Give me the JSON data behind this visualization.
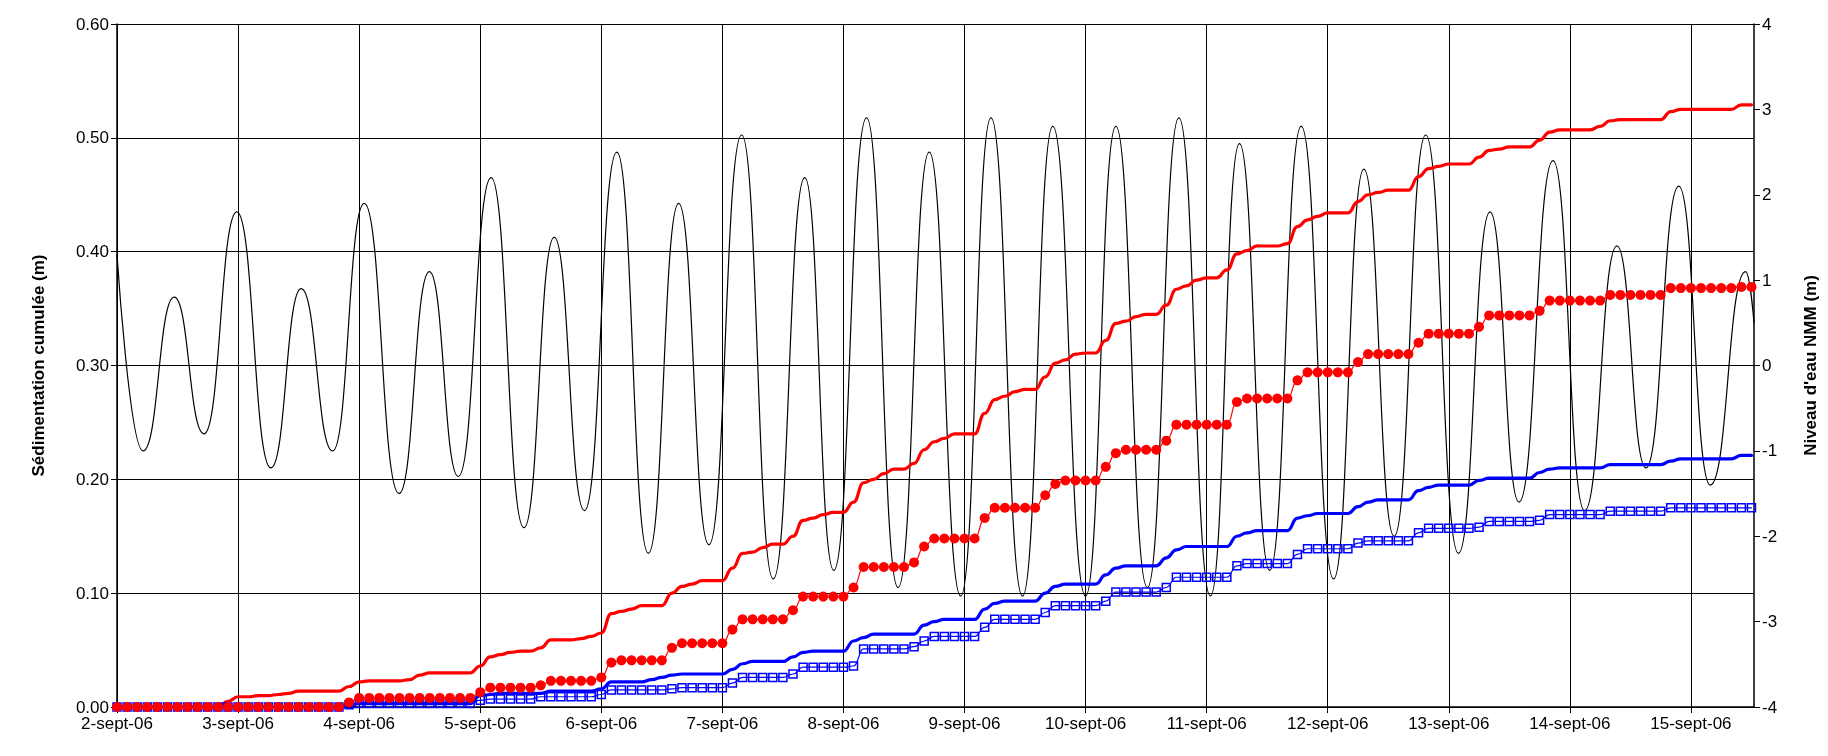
{
  "chart_data": {
    "type": "line",
    "ylabel": "Sédimentation cumulée (m)",
    "y2label": "Niveau d'eau NMM (m)",
    "grid": true,
    "xlim": [
      "--09-02T00:00",
      "--09-15T12:30"
    ],
    "xticks": [
      {
        "value": "--09-02",
        "label": "2-sept-06"
      },
      {
        "value": "--09-03",
        "label": "3-sept-06"
      },
      {
        "value": "--09-04",
        "label": "4-sept-06"
      },
      {
        "value": "--09-05",
        "label": "5-sept-06"
      },
      {
        "value": "--09-06",
        "label": "6-sept-06"
      },
      {
        "value": "--09-07",
        "label": "7-sept-06"
      },
      {
        "value": "--09-08",
        "label": "8-sept-06"
      },
      {
        "value": "--09-09",
        "label": "9-sept-06"
      },
      {
        "value": "--09-10",
        "label": "10-sept-06"
      },
      {
        "value": "--09-11",
        "label": "11-sept-06"
      },
      {
        "value": "--09-12",
        "label": "12-sept-06"
      },
      {
        "value": "--09-13",
        "label": "13-sept-06"
      },
      {
        "value": "--09-14",
        "label": "14-sept-06"
      },
      {
        "value": "--09-15",
        "label": "15-sept-06"
      }
    ],
    "ylim": [
      0,
      0.6
    ],
    "yticks": [
      {
        "value": 0,
        "label": "0.00"
      },
      {
        "value": 0.1,
        "label": "0.10"
      },
      {
        "value": 0.2,
        "label": "0.20"
      },
      {
        "value": 0.3,
        "label": "0.30"
      },
      {
        "value": 0.4,
        "label": "0.40"
      },
      {
        "value": 0.5,
        "label": "0.50"
      },
      {
        "value": 0.6,
        "label": "0.60"
      }
    ],
    "y2lim": [
      -4,
      4
    ],
    "y2ticks": [
      -4,
      -3,
      -2,
      -1,
      0,
      1,
      2,
      3,
      4
    ],
    "x": [
      "--09-02T00:00",
      "--09-02T02:00",
      "--09-02T04:00",
      "--09-02T06:00",
      "--09-02T08:00",
      "--09-02T10:00",
      "--09-02T12:00",
      "--09-02T14:00",
      "--09-02T16:00",
      "--09-02T18:00",
      "--09-02T20:00",
      "--09-02T22:00",
      "--09-03T00:00",
      "--09-03T02:00",
      "--09-03T04:00",
      "--09-03T06:00",
      "--09-03T08:00",
      "--09-03T10:00",
      "--09-03T12:00",
      "--09-03T14:00",
      "--09-03T16:00",
      "--09-03T18:00",
      "--09-03T20:00",
      "--09-03T22:00",
      "--09-04T00:00",
      "--09-04T02:00",
      "--09-04T04:00",
      "--09-04T06:00",
      "--09-04T08:00",
      "--09-04T10:00",
      "--09-04T12:00",
      "--09-04T14:00",
      "--09-04T16:00",
      "--09-04T18:00",
      "--09-04T20:00",
      "--09-04T22:00",
      "--09-05T00:00",
      "--09-05T02:00",
      "--09-05T04:00",
      "--09-05T06:00",
      "--09-05T08:00",
      "--09-05T10:00",
      "--09-05T12:00",
      "--09-05T14:00",
      "--09-05T16:00",
      "--09-05T18:00",
      "--09-05T20:00",
      "--09-05T22:00",
      "--09-06T00:00",
      "--09-06T02:00",
      "--09-06T04:00",
      "--09-06T06:00",
      "--09-06T08:00",
      "--09-06T10:00",
      "--09-06T12:00",
      "--09-06T14:00",
      "--09-06T16:00",
      "--09-06T18:00",
      "--09-06T20:00",
      "--09-06T22:00",
      "--09-07T00:00",
      "--09-07T02:00",
      "--09-07T04:00",
      "--09-07T06:00",
      "--09-07T08:00",
      "--09-07T10:00",
      "--09-07T12:00",
      "--09-07T14:00",
      "--09-07T16:00",
      "--09-07T18:00",
      "--09-07T20:00",
      "--09-07T22:00",
      "--09-08T00:00",
      "--09-08T02:00",
      "--09-08T04:00",
      "--09-08T06:00",
      "--09-08T08:00",
      "--09-08T10:00",
      "--09-08T12:00",
      "--09-08T14:00",
      "--09-08T16:00",
      "--09-08T18:00",
      "--09-08T20:00",
      "--09-08T22:00",
      "--09-09T00:00",
      "--09-09T02:00",
      "--09-09T04:00",
      "--09-09T06:00",
      "--09-09T08:00",
      "--09-09T10:00",
      "--09-09T12:00",
      "--09-09T14:00",
      "--09-09T16:00",
      "--09-09T18:00",
      "--09-09T20:00",
      "--09-09T22:00",
      "--09-10T00:00",
      "--09-10T02:00",
      "--09-10T04:00",
      "--09-10T06:00",
      "--09-10T08:00",
      "--09-10T10:00",
      "--09-10T12:00",
      "--09-10T14:00",
      "--09-10T16:00",
      "--09-10T18:00",
      "--09-10T20:00",
      "--09-10T22:00",
      "--09-11T00:00",
      "--09-11T02:00",
      "--09-11T04:00",
      "--09-11T06:00",
      "--09-11T08:00",
      "--09-11T10:00",
      "--09-11T12:00",
      "--09-11T14:00",
      "--09-11T16:00",
      "--09-11T18:00",
      "--09-11T20:00",
      "--09-11T22:00",
      "--09-12T00:00",
      "--09-12T02:00",
      "--09-12T04:00",
      "--09-12T06:00",
      "--09-12T08:00",
      "--09-12T10:00",
      "--09-12T12:00",
      "--09-12T14:00",
      "--09-12T16:00",
      "--09-12T18:00",
      "--09-12T20:00",
      "--09-12T22:00",
      "--09-13T00:00",
      "--09-13T02:00",
      "--09-13T04:00",
      "--09-13T06:00",
      "--09-13T08:00",
      "--09-13T10:00",
      "--09-13T12:00",
      "--09-13T14:00",
      "--09-13T16:00",
      "--09-13T18:00",
      "--09-13T20:00",
      "--09-13T22:00",
      "--09-14T00:00",
      "--09-14T02:00",
      "--09-14T04:00",
      "--09-14T06:00",
      "--09-14T08:00",
      "--09-14T10:00",
      "--09-14T12:00",
      "--09-14T14:00",
      "--09-14T16:00",
      "--09-14T18:00",
      "--09-14T20:00",
      "--09-14T22:00",
      "--09-15T00:00",
      "--09-15T02:00",
      "--09-15T04:00",
      "--09-15T06:00",
      "--09-15T08:00",
      "--09-15T10:00",
      "--09-15T12:00"
    ],
    "series": [
      {
        "color": "#000000",
        "axis": "y2",
        "marker": "none",
        "x": [
          "--09-02T00:00",
          "--09-02T05:10",
          "--09-02T11:20",
          "--09-02T17:15",
          "--09-02T23:45",
          "--09-03T06:30",
          "--09-03T12:30",
          "--09-03T18:45",
          "--09-04T01:00",
          "--09-04T07:55",
          "--09-04T13:55",
          "--09-04T19:40",
          "--09-05T02:10",
          "--09-05T08:40",
          "--09-05T14:40",
          "--09-05T20:40",
          "--09-06T03:05",
          "--09-06T09:20",
          "--09-06T15:20",
          "--09-06T21:20",
          "--09-07T03:50",
          "--09-07T10:05",
          "--09-07T16:20",
          "--09-07T22:05",
          "--09-08T04:35",
          "--09-08T10:50",
          "--09-08T17:00",
          "--09-08T23:15",
          "--09-09T05:15",
          "--09-09T11:30",
          "--09-09T17:30",
          "--09-10T00:00",
          "--09-10T06:00",
          "--09-10T12:15",
          "--09-10T18:30",
          "--09-11T00:45",
          "--09-11T06:30",
          "--09-11T12:30",
          "--09-11T18:45",
          "--09-12T01:10",
          "--09-12T07:10",
          "--09-12T13:10",
          "--09-12T19:25",
          "--09-13T01:55",
          "--09-13T08:10",
          "--09-13T13:55",
          "--09-13T20:40",
          "--09-14T02:55",
          "--09-14T09:20",
          "--09-14T15:05",
          "--09-14T21:35",
          "--09-15T03:50",
          "--09-15T10:50",
          "--09-15T12:30"
        ],
        "values": [
          1.3,
          -1.0,
          0.8,
          -0.8,
          1.8,
          -1.2,
          0.9,
          -1.0,
          1.9,
          -1.5,
          1.1,
          -1.3,
          2.2,
          -1.9,
          1.5,
          -1.7,
          2.5,
          -2.2,
          1.9,
          -2.1,
          2.7,
          -2.5,
          2.2,
          -2.4,
          2.9,
          -2.6,
          2.5,
          -2.7,
          2.9,
          -2.7,
          2.8,
          -2.7,
          2.8,
          -2.6,
          2.9,
          -2.7,
          2.6,
          -2.4,
          2.8,
          -2.5,
          2.3,
          -2.0,
          2.7,
          -2.2,
          1.8,
          -1.6,
          2.4,
          -1.7,
          1.4,
          -1.2,
          2.1,
          -1.4,
          1.1,
          0.5
        ]
      },
      {
        "color": "#0000ff",
        "marker": "none",
        "values": [
          0,
          0,
          0,
          0,
          0,
          0,
          0,
          0,
          0,
          0,
          0,
          0,
          0,
          0,
          0,
          0,
          0,
          0,
          0,
          0,
          0,
          0,
          0,
          0.001,
          0.003,
          0.003,
          0.003,
          0.003,
          0.003,
          0.003,
          0.003,
          0.003,
          0.003,
          0.003,
          0.003,
          0.003,
          0.01,
          0.011,
          0.012,
          0.012,
          0.012,
          0.012,
          0.012,
          0.014,
          0.014,
          0.014,
          0.014,
          0.014,
          0.016,
          0.022,
          0.022,
          0.022,
          0.022,
          0.024,
          0.026,
          0.028,
          0.029,
          0.029,
          0.029,
          0.029,
          0.029,
          0.033,
          0.038,
          0.04,
          0.04,
          0.04,
          0.04,
          0.044,
          0.048,
          0.049,
          0.049,
          0.049,
          0.049,
          0.058,
          0.061,
          0.064,
          0.064,
          0.064,
          0.064,
          0.064,
          0.072,
          0.075,
          0.077,
          0.077,
          0.077,
          0.077,
          0.086,
          0.091,
          0.093,
          0.093,
          0.093,
          0.093,
          0.1,
          0.106,
          0.108,
          0.108,
          0.108,
          0.108,
          0.116,
          0.122,
          0.124,
          0.124,
          0.124,
          0.124,
          0.131,
          0.138,
          0.141,
          0.141,
          0.141,
          0.141,
          0.141,
          0.15,
          0.153,
          0.155,
          0.155,
          0.155,
          0.155,
          0.166,
          0.168,
          0.17,
          0.17,
          0.17,
          0.17,
          0.176,
          0.18,
          0.182,
          0.182,
          0.182,
          0.182,
          0.19,
          0.193,
          0.195,
          0.195,
          0.195,
          0.195,
          0.199,
          0.201,
          0.201,
          0.201,
          0.201,
          0.201,
          0.206,
          0.209,
          0.21,
          0.21,
          0.21,
          0.21,
          0.21,
          0.213,
          0.213,
          0.213,
          0.213,
          0.213,
          0.213,
          0.216,
          0.218,
          0.218,
          0.218,
          0.218,
          0.218,
          0.218,
          0.221,
          0.221
        ]
      },
      {
        "color": "#0000ff",
        "marker": "square",
        "values": [
          0,
          0,
          0,
          0,
          0,
          0,
          0,
          0,
          0,
          0,
          0,
          0,
          0,
          0,
          0,
          0,
          0,
          0,
          0,
          0,
          0,
          0,
          0,
          0.002,
          0.003,
          0.003,
          0.003,
          0.003,
          0.003,
          0.003,
          0.003,
          0.003,
          0.003,
          0.003,
          0.003,
          0.003,
          0.006,
          0.007,
          0.007,
          0.007,
          0.007,
          0.007,
          0.009,
          0.009,
          0.009,
          0.009,
          0.009,
          0.009,
          0.011,
          0.015,
          0.015,
          0.015,
          0.015,
          0.015,
          0.015,
          0.016,
          0.017,
          0.017,
          0.017,
          0.017,
          0.017,
          0.021,
          0.026,
          0.026,
          0.026,
          0.026,
          0.026,
          0.029,
          0.035,
          0.035,
          0.035,
          0.035,
          0.035,
          0.036,
          0.051,
          0.051,
          0.051,
          0.051,
          0.051,
          0.053,
          0.058,
          0.062,
          0.062,
          0.062,
          0.062,
          0.062,
          0.07,
          0.077,
          0.077,
          0.077,
          0.077,
          0.077,
          0.083,
          0.089,
          0.089,
          0.089,
          0.089,
          0.089,
          0.093,
          0.101,
          0.101,
          0.101,
          0.101,
          0.101,
          0.105,
          0.114,
          0.114,
          0.114,
          0.114,
          0.114,
          0.114,
          0.124,
          0.126,
          0.126,
          0.126,
          0.126,
          0.126,
          0.134,
          0.139,
          0.139,
          0.139,
          0.139,
          0.139,
          0.144,
          0.146,
          0.146,
          0.146,
          0.146,
          0.146,
          0.153,
          0.157,
          0.157,
          0.157,
          0.157,
          0.157,
          0.158,
          0.163,
          0.163,
          0.163,
          0.163,
          0.163,
          0.164,
          0.169,
          0.169,
          0.169,
          0.169,
          0.169,
          0.169,
          0.172,
          0.172,
          0.172,
          0.172,
          0.172,
          0.172,
          0.175,
          0.175,
          0.175,
          0.175,
          0.175,
          0.175,
          0.175,
          0.175,
          0.175
        ]
      },
      {
        "color": "#ff0000",
        "marker": "none",
        "values": [
          0,
          0,
          0,
          0,
          0,
          0,
          0,
          0,
          0,
          0,
          0,
          0.005,
          0.009,
          0.009,
          0.01,
          0.01,
          0.011,
          0.012,
          0.014,
          0.014,
          0.014,
          0.014,
          0.014,
          0.018,
          0.022,
          0.023,
          0.023,
          0.023,
          0.023,
          0.024,
          0.028,
          0.03,
          0.03,
          0.03,
          0.03,
          0.03,
          0.036,
          0.044,
          0.046,
          0.048,
          0.049,
          0.049,
          0.052,
          0.059,
          0.059,
          0.059,
          0.06,
          0.062,
          0.065,
          0.082,
          0.084,
          0.086,
          0.089,
          0.089,
          0.089,
          0.1,
          0.106,
          0.108,
          0.111,
          0.111,
          0.111,
          0.122,
          0.135,
          0.136,
          0.14,
          0.143,
          0.143,
          0.15,
          0.164,
          0.166,
          0.169,
          0.171,
          0.171,
          0.18,
          0.197,
          0.2,
          0.205,
          0.209,
          0.209,
          0.214,
          0.226,
          0.233,
          0.236,
          0.24,
          0.24,
          0.24,
          0.258,
          0.27,
          0.273,
          0.277,
          0.279,
          0.279,
          0.29,
          0.302,
          0.305,
          0.31,
          0.311,
          0.311,
          0.322,
          0.337,
          0.339,
          0.343,
          0.345,
          0.345,
          0.353,
          0.367,
          0.37,
          0.375,
          0.377,
          0.377,
          0.384,
          0.398,
          0.401,
          0.405,
          0.405,
          0.405,
          0.407,
          0.422,
          0.428,
          0.431,
          0.434,
          0.434,
          0.434,
          0.444,
          0.45,
          0.452,
          0.454,
          0.454,
          0.454,
          0.466,
          0.473,
          0.475,
          0.477,
          0.477,
          0.477,
          0.483,
          0.489,
          0.49,
          0.492,
          0.492,
          0.492,
          0.498,
          0.505,
          0.507,
          0.507,
          0.507,
          0.507,
          0.51,
          0.515,
          0.516,
          0.516,
          0.516,
          0.516,
          0.516,
          0.523,
          0.525,
          0.525,
          0.525,
          0.525,
          0.525,
          0.525,
          0.529,
          0.529
        ]
      },
      {
        "color": "#ff0000",
        "marker": "circle",
        "values": [
          0,
          0,
          0,
          0,
          0,
          0,
          0,
          0,
          0,
          0,
          0,
          0,
          0,
          0,
          0,
          0,
          0,
          0,
          0,
          0,
          0,
          0,
          0,
          0.004,
          0.008,
          0.008,
          0.008,
          0.008,
          0.008,
          0.008,
          0.008,
          0.008,
          0.008,
          0.008,
          0.008,
          0.008,
          0.013,
          0.017,
          0.017,
          0.017,
          0.017,
          0.017,
          0.019,
          0.023,
          0.023,
          0.023,
          0.023,
          0.023,
          0.026,
          0.039,
          0.041,
          0.041,
          0.041,
          0.041,
          0.041,
          0.052,
          0.056,
          0.056,
          0.056,
          0.056,
          0.056,
          0.068,
          0.077,
          0.077,
          0.077,
          0.077,
          0.077,
          0.085,
          0.097,
          0.097,
          0.097,
          0.097,
          0.097,
          0.105,
          0.123,
          0.123,
          0.123,
          0.123,
          0.123,
          0.127,
          0.141,
          0.148,
          0.148,
          0.148,
          0.148,
          0.148,
          0.166,
          0.175,
          0.175,
          0.175,
          0.175,
          0.175,
          0.186,
          0.196,
          0.199,
          0.199,
          0.199,
          0.199,
          0.211,
          0.223,
          0.226,
          0.226,
          0.226,
          0.226,
          0.234,
          0.248,
          0.248,
          0.248,
          0.248,
          0.248,
          0.248,
          0.268,
          0.271,
          0.271,
          0.271,
          0.271,
          0.271,
          0.287,
          0.294,
          0.294,
          0.294,
          0.294,
          0.294,
          0.303,
          0.31,
          0.31,
          0.31,
          0.31,
          0.31,
          0.32,
          0.328,
          0.328,
          0.328,
          0.328,
          0.328,
          0.334,
          0.344,
          0.344,
          0.344,
          0.344,
          0.344,
          0.348,
          0.357,
          0.357,
          0.357,
          0.357,
          0.357,
          0.357,
          0.362,
          0.362,
          0.362,
          0.362,
          0.362,
          0.362,
          0.368,
          0.368,
          0.368,
          0.368,
          0.368,
          0.368,
          0.368,
          0.369,
          0.369
        ]
      }
    ]
  }
}
